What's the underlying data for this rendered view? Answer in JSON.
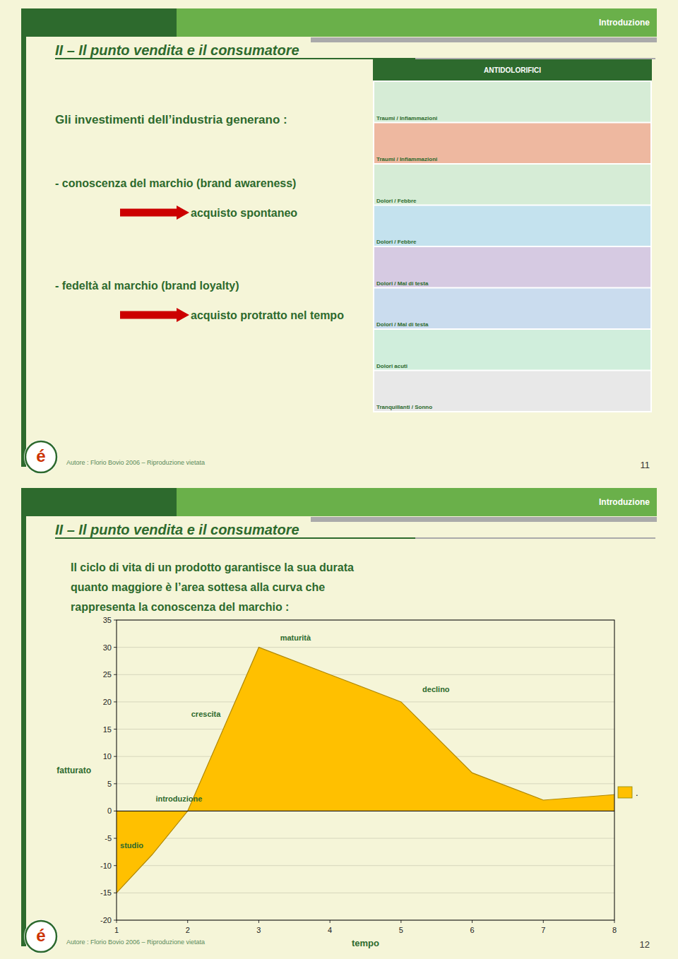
{
  "theme": {
    "background": "#f5f5d8",
    "text_color": "#2d6a2d",
    "accent": "#2d6a2d",
    "arrow_color": "#cc0000"
  },
  "slides": [
    {
      "header_label": "Introduzione",
      "title": "II – Il punto vendita e il consumatore",
      "number": "11",
      "footer": "Autore : Florio Bovio 2006 – Riproduzione vietata",
      "logo": "é",
      "lines": [
        {
          "text": "Gli investimenti dell’industria generano :",
          "arrow": false
        },
        {
          "text": "- conoscenza del marchio (brand awareness)",
          "arrow": false
        },
        {
          "text": "acquisto spontaneo",
          "arrow": true
        },
        {
          "text": "- fedeltà al marchio (brand loyalty)",
          "arrow": false
        },
        {
          "text": "acquisto protratto nel tempo",
          "arrow": true
        }
      ],
      "image": {
        "title": "ANTIDOLORIFICI",
        "rows": [
          {
            "label": "Traumi / Infiammazioni",
            "color": "#c8e6c8"
          },
          {
            "label": "Traumi / Infiammazioni",
            "color": "#e8a080"
          },
          {
            "label": "Dolori / Febbre",
            "color": "#c8e6c8"
          },
          {
            "label": "Dolori / Febbre",
            "color": "#b0d8e8"
          },
          {
            "label": "Dolori / Mal di testa",
            "color": "#c8b8d8"
          },
          {
            "label": "Dolori / Mal di testa",
            "color": "#b8d0e8"
          },
          {
            "label": "Dolori acuti",
            "color": "#c0e8d0"
          },
          {
            "label": "Tranquillanti / Sonno",
            "color": "#e0e0e0"
          }
        ]
      }
    },
    {
      "header_label": "Introduzione",
      "title": "II – Il punto vendita e il consumatore",
      "number": "12",
      "footer": "Autore : Florio Bovio 2006 – Riproduzione vietata",
      "logo": "é",
      "lines": [
        {
          "text": "Il ciclo di vita di un prodotto garantisce la sua durata",
          "arrow": false
        },
        {
          "text": "quanto maggiore è l’area sottesa alla curva che",
          "arrow": false
        },
        {
          "text": "rappresenta la conoscenza del marchio :",
          "arrow": false
        }
      ]
    }
  ],
  "chart_data": {
    "type": "area",
    "x": [
      1,
      1.5,
      2,
      3,
      4,
      5,
      6,
      7,
      8
    ],
    "series": [
      {
        "name": ".",
        "color": "#ffc000",
        "values": [
          -15,
          -8,
          0,
          30,
          25,
          20,
          7,
          2,
          3
        ]
      }
    ],
    "xlabel": "tempo",
    "ylabel": "fatturato",
    "xlim": [
      1,
      8
    ],
    "ylim": [
      -20,
      35
    ],
    "xticks": [
      1,
      2,
      3,
      4,
      5,
      6,
      7,
      8
    ],
    "yticks": [
      -20,
      -15,
      -10,
      -5,
      0,
      5,
      10,
      15,
      20,
      25,
      30,
      35
    ],
    "grid": true,
    "legend": "right",
    "annotations": [
      {
        "text": "maturità",
        "x": 3.3,
        "y": 31.0
      },
      {
        "text": "declino",
        "x": 5.3,
        "y": 21.5
      },
      {
        "text": "crescita",
        "x": 2.05,
        "y": 17.0
      },
      {
        "text": "introduzione",
        "x": 1.55,
        "y": 1.5
      },
      {
        "text": "studio",
        "x": 1.05,
        "y": -7.0
      }
    ]
  }
}
